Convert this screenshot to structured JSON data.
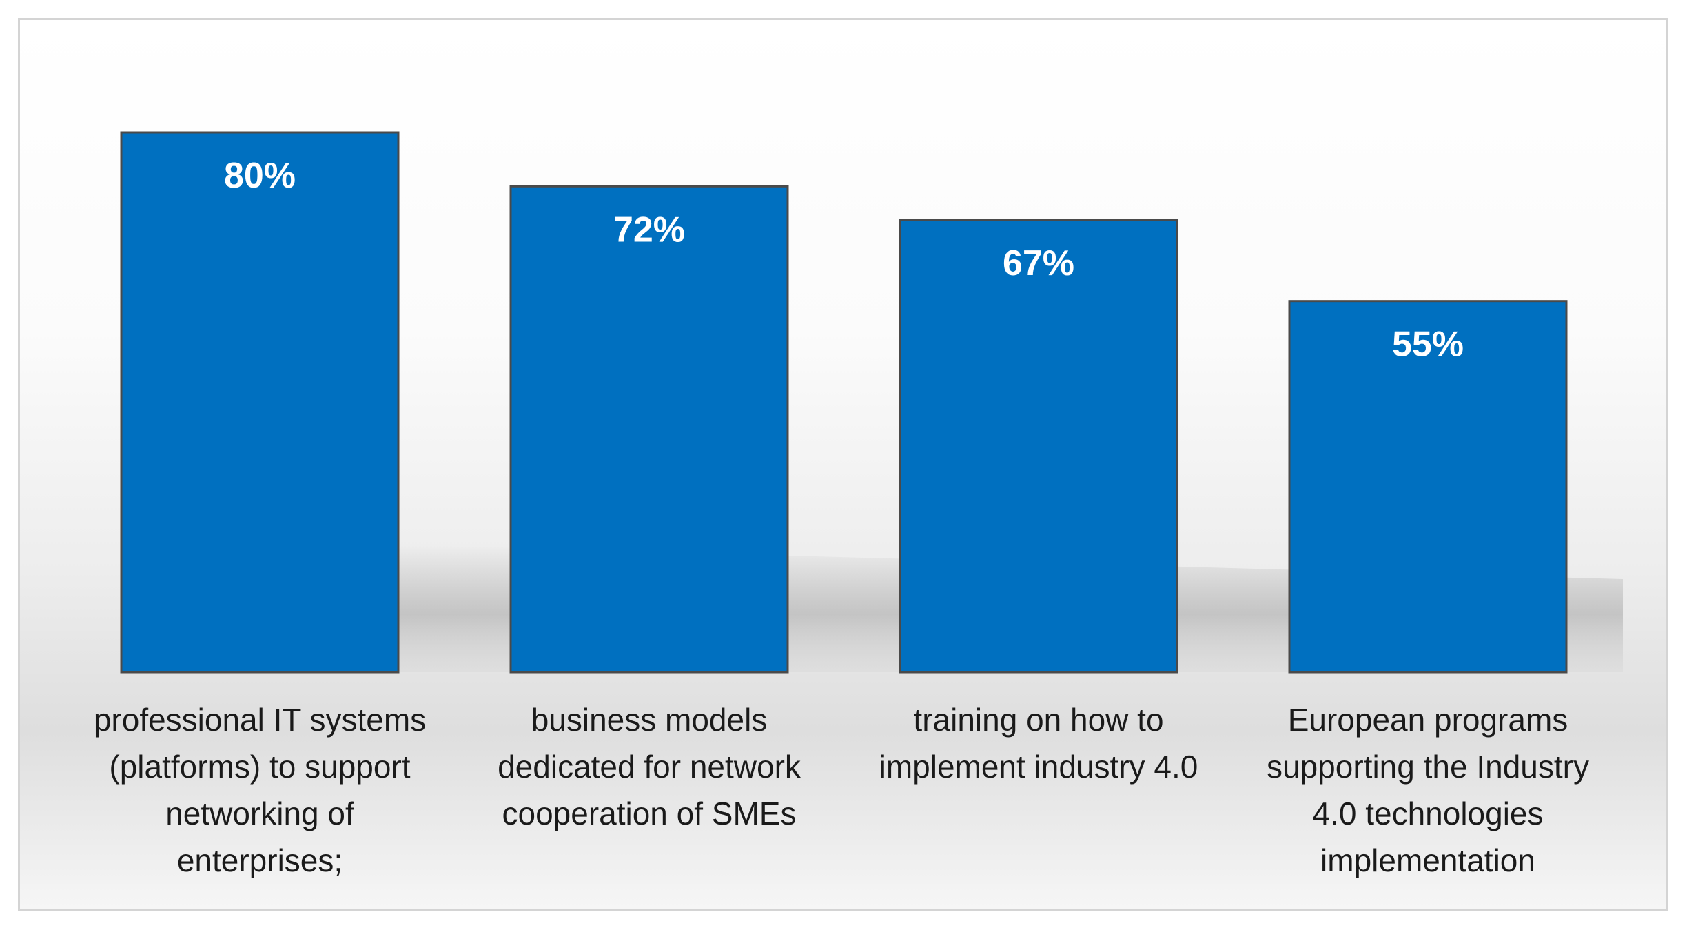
{
  "chart_data": {
    "type": "bar",
    "title": "",
    "xlabel": "",
    "ylabel": "",
    "ylim": [
      0,
      100
    ],
    "grid": false,
    "categories": [
      "professional IT systems\n(platforms) to support\nnetworking of\nenterprises;",
      "business models\ndedicated for network\ncooperation of SMEs",
      "training on how to\nimplement industry 4.0",
      "European programs\nsupporting the Industry\n4.0 technologies\nimplementation"
    ],
    "values": [
      80,
      72,
      67,
      55
    ],
    "data_labels": [
      "80%",
      "72%",
      "67%",
      "55%"
    ],
    "colors": {
      "bar_fill": "#0070C0",
      "bar_stroke": "#4a4a4a",
      "label_text": "#ffffff"
    }
  }
}
